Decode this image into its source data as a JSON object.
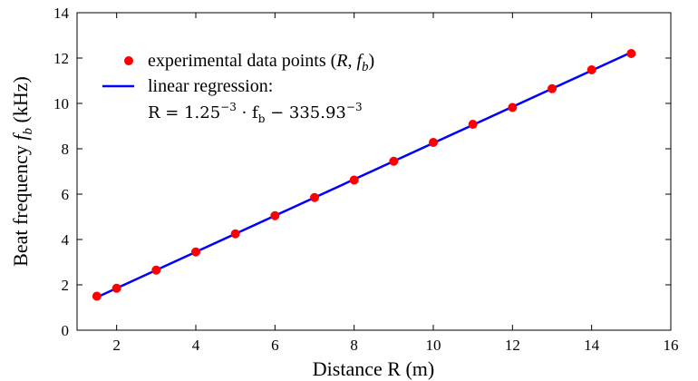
{
  "chart_data": {
    "type": "scatter",
    "xlabel": "Distance R (m)",
    "ylabel": "Beat frequency f_b (kHz)",
    "xlim": [
      1,
      16
    ],
    "ylim": [
      0,
      14
    ],
    "xticks": [
      2,
      4,
      6,
      8,
      10,
      12,
      14,
      16
    ],
    "yticks": [
      0,
      2,
      4,
      6,
      8,
      10,
      12,
      14
    ],
    "grid": false,
    "legend_position": "top-left",
    "series": [
      {
        "name": "experimental data points (R, f_b)",
        "kind": "scatter",
        "color": "#ff0000",
        "x": [
          1.5,
          2,
          3,
          4,
          5,
          6,
          7,
          8,
          9,
          10,
          11,
          12,
          13,
          14,
          15
        ],
        "y": [
          1.5,
          1.85,
          2.65,
          3.45,
          4.25,
          5.05,
          5.85,
          6.62,
          7.45,
          8.28,
          9.08,
          9.82,
          10.65,
          11.48,
          12.2
        ]
      },
      {
        "name": "linear regression:",
        "kind": "line",
        "color": "#0000ff",
        "x": [
          1.5,
          15
        ],
        "y": [
          1.45,
          12.25
        ]
      }
    ],
    "annotation": {
      "prefix": "R = 1.25",
      "exp1": "−3",
      "mid": " · f",
      "sub": "b",
      "suffix": " − 335.93",
      "exp2": "−3"
    }
  }
}
